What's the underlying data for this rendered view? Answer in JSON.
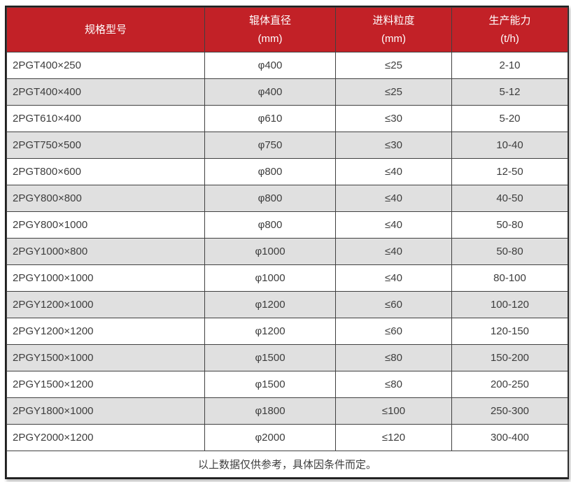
{
  "colors": {
    "header_bg": "#c22127",
    "header_text": "#ffffff",
    "row_bg": "#ffffff",
    "row_alt_bg": "#e0e0e0",
    "border": "#404040",
    "text": "#3d3d3d"
  },
  "table": {
    "headers": [
      {
        "title": "规格型号",
        "unit": ""
      },
      {
        "title": "辊体直径",
        "unit": "(mm)"
      },
      {
        "title": "进料粒度",
        "unit": "(mm)"
      },
      {
        "title": "生产能力",
        "unit": "(t/h)"
      }
    ],
    "rows": [
      [
        "2PGT400×250",
        "φ400",
        "≤25",
        "2-10"
      ],
      [
        "2PGT400×400",
        "φ400",
        "≤25",
        "5-12"
      ],
      [
        "2PGT610×400",
        "φ610",
        "≤30",
        "5-20"
      ],
      [
        "2PGT750×500",
        "φ750",
        "≤30",
        "10-40"
      ],
      [
        "2PGT800×600",
        "φ800",
        "≤40",
        "12-50"
      ],
      [
        "2PGY800×800",
        "φ800",
        "≤40",
        "40-50"
      ],
      [
        "2PGY800×1000",
        "φ800",
        "≤40",
        "50-80"
      ],
      [
        "2PGY1000×800",
        "φ1000",
        "≤40",
        "50-80"
      ],
      [
        "2PGY1000×1000",
        "φ1000",
        "≤40",
        "80-100"
      ],
      [
        "2PGY1200×1000",
        "φ1200",
        "≤60",
        "100-120"
      ],
      [
        "2PGY1200×1200",
        "φ1200",
        "≤60",
        "120-150"
      ],
      [
        "2PGY1500×1000",
        "φ1500",
        "≤80",
        "150-200"
      ],
      [
        "2PGY1500×1200",
        "φ1500",
        "≤80",
        "200-250"
      ],
      [
        "2PGY1800×1000",
        "φ1800",
        "≤100",
        "250-300"
      ],
      [
        "2PGY2000×1200",
        "φ2000",
        "≤120",
        "300-400"
      ]
    ],
    "footnote": "以上数据仅供参考，具体因条件而定。"
  },
  "chart_data": {
    "type": "table",
    "columns": [
      "规格型号",
      "辊体直径 (mm)",
      "进料粒度 (mm)",
      "生产能力 (t/h)"
    ],
    "rows": [
      [
        "2PGT400×250",
        "φ400",
        "≤25",
        "2-10"
      ],
      [
        "2PGT400×400",
        "φ400",
        "≤25",
        "5-12"
      ],
      [
        "2PGT610×400",
        "φ610",
        "≤30",
        "5-20"
      ],
      [
        "2PGT750×500",
        "φ750",
        "≤30",
        "10-40"
      ],
      [
        "2PGT800×600",
        "φ800",
        "≤40",
        "12-50"
      ],
      [
        "2PGY800×800",
        "φ800",
        "≤40",
        "40-50"
      ],
      [
        "2PGY800×1000",
        "φ800",
        "≤40",
        "50-80"
      ],
      [
        "2PGY1000×800",
        "φ1000",
        "≤40",
        "50-80"
      ],
      [
        "2PGY1000×1000",
        "φ1000",
        "≤40",
        "80-100"
      ],
      [
        "2PGY1200×1000",
        "φ1200",
        "≤60",
        "100-120"
      ],
      [
        "2PGY1200×1200",
        "φ1200",
        "≤60",
        "120-150"
      ],
      [
        "2PGY1500×1000",
        "φ1500",
        "≤80",
        "150-200"
      ],
      [
        "2PGY1500×1200",
        "φ1500",
        "≤80",
        "200-250"
      ],
      [
        "2PGY1800×1000",
        "φ1800",
        "≤100",
        "250-300"
      ],
      [
        "2PGY2000×1200",
        "φ2000",
        "≤120",
        "300-400"
      ]
    ],
    "footnote": "以上数据仅供参考，具体因条件而定。"
  }
}
